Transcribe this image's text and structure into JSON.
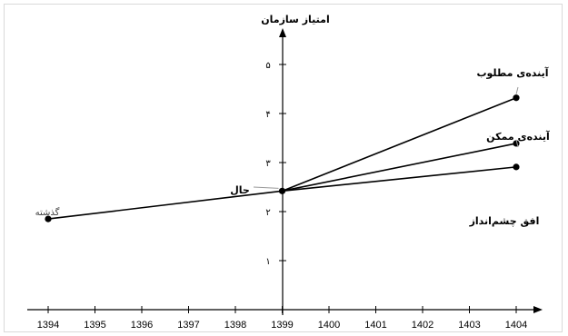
{
  "chart_data": {
    "type": "line",
    "title": "",
    "ylabel": "امتیاز سازمان",
    "xlabel": "",
    "x_ticks": [
      "1394",
      "1395",
      "1396",
      "1397",
      "1398",
      "1399",
      "1400",
      "1401",
      "1402",
      "1403",
      "1404"
    ],
    "y_ticks": [
      "۱",
      "۲",
      "۳",
      "۴",
      "۵"
    ],
    "xlim": [
      1394,
      1404.5
    ],
    "ylim": [
      0,
      5.8
    ],
    "series": [
      {
        "name": "گذشته",
        "points": [
          [
            1394,
            1.85
          ],
          [
            1399,
            2.42
          ]
        ]
      },
      {
        "name": "آینده‌ی مطلوب",
        "points": [
          [
            1399,
            2.42
          ],
          [
            1404,
            4.32
          ]
        ]
      },
      {
        "name": "آینده‌ی ممکن",
        "points": [
          [
            1399,
            2.42
          ],
          [
            1404,
            3.39
          ]
        ]
      },
      {
        "name": "افق چشم‌انداز",
        "points": [
          [
            1399,
            2.42
          ],
          [
            1404,
            2.91
          ]
        ]
      }
    ],
    "points": [
      {
        "x": 1394,
        "y": 1.85
      },
      {
        "x": 1399,
        "y": 2.42
      },
      {
        "x": 1404,
        "y": 4.32
      },
      {
        "x": 1404,
        "y": 3.39
      },
      {
        "x": 1404,
        "y": 2.91
      }
    ],
    "annotations": {
      "past": "گذشته",
      "present": "حال",
      "desired": "آینده‌ی مطلوب",
      "possible": "آینده‌ی ممکن",
      "horizon": "افق چشم‌انداز"
    },
    "grid": false,
    "legend": "none",
    "colors": {
      "line": "#000000",
      "point": "#000000",
      "callout": "#999999"
    }
  }
}
